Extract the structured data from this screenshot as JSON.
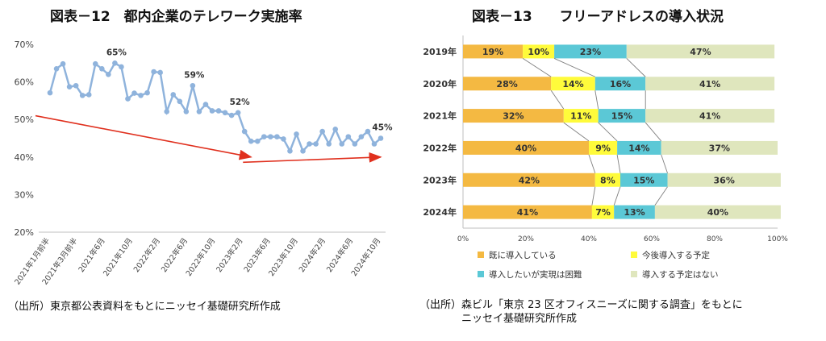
{
  "left": {
    "title": "図表－12　都内企業のテレワーク実施率",
    "source": "（出所）東京都公表資料をもとにニッセイ基礎研究所作成",
    "chart_data": {
      "type": "line",
      "title": "図表－12　都内企業のテレワーク実施率",
      "ylabel": "",
      "xlabel": "",
      "ylim": [
        20,
        70
      ],
      "yticks": [
        "20%",
        "30%",
        "40%",
        "50%",
        "60%",
        "70%"
      ],
      "xticks": [
        "2021年1月前半",
        "2021年3月前半",
        "2021年6月",
        "2021年10月",
        "2022年2月",
        "2022年6月",
        "2022年10月",
        "2023年2月",
        "2023年6月",
        "2023年10月",
        "2024年2月",
        "2024年6月",
        "2024年10月"
      ],
      "series": [
        {
          "values": [
            57.1,
            63.5,
            64.8,
            58.7,
            59.0,
            56.4,
            56.6,
            64.8,
            63.5,
            62.0,
            65.0,
            64.0,
            55.5,
            57.0,
            56.4,
            57.1,
            62.7,
            62.5,
            52.1,
            56.6,
            54.8,
            52.1,
            59.0,
            52.1,
            54.0,
            52.3,
            52.3,
            51.8,
            51.1,
            51.8,
            46.8,
            44.2,
            44.2,
            45.4,
            45.4,
            45.4,
            44.8,
            41.6,
            46.1,
            41.6,
            43.5,
            43.5,
            46.8,
            43.5,
            47.4,
            43.5,
            45.4,
            43.5,
            45.4,
            46.8,
            43.5,
            45.0
          ]
        }
      ],
      "annotations": [
        {
          "label": "65%",
          "index": 10
        },
        {
          "label": "59%",
          "index": 22
        },
        {
          "label": "52%",
          "index": 29
        },
        {
          "label": "45%",
          "index": 51
        }
      ],
      "trend_arrows": [
        {
          "from": [
            0,
            51.0
          ],
          "to": [
            31,
            40.0
          ]
        },
        {
          "from": [
            32,
            38.6
          ],
          "to": [
            51,
            40.0
          ]
        }
      ],
      "grid": false
    }
  },
  "right": {
    "title": "図表－13　　フリーアドレスの導入状況",
    "source": "（出所）森ビル「東京 23 区オフィスニーズに関する調査」をもとに\n　　　　ニッセイ基礎研究所作成",
    "chart_data": {
      "type": "bar",
      "orientation": "horizontal",
      "stacked": true,
      "title": "図表－13　　フリーアドレスの導入状況",
      "categories": [
        "2019年",
        "2020年",
        "2021年",
        "2022年",
        "2023年",
        "2024年"
      ],
      "xlim": [
        0,
        100
      ],
      "xticks": [
        "0%",
        "20%",
        "40%",
        "60%",
        "80%",
        "100%"
      ],
      "series": [
        {
          "name": "既に導入している",
          "color": "#f4b942",
          "values": [
            19,
            28,
            32,
            40,
            42,
            41
          ]
        },
        {
          "name": "今後導入する予定",
          "color": "#fffb3b",
          "values": [
            10,
            14,
            11,
            9,
            8,
            7
          ]
        },
        {
          "name": "導入したいが実現は困難",
          "color": "#5bc8d6",
          "values": [
            23,
            16,
            15,
            14,
            15,
            13
          ]
        },
        {
          "name": "導入する予定はない",
          "color": "#dfe6bd",
          "values": [
            47,
            41,
            41,
            37,
            36,
            40
          ]
        }
      ],
      "value_labels": [
        [
          "19%",
          "10%",
          "23%",
          "47%"
        ],
        [
          "28%",
          "14%",
          "16%",
          "41%"
        ],
        [
          "32%",
          "11%",
          "15%",
          "41%"
        ],
        [
          "40%",
          "9%",
          "14%",
          "37%"
        ],
        [
          "42%",
          "8%",
          "15%",
          "36%"
        ],
        [
          "41%",
          "7%",
          "13%",
          "40%"
        ]
      ],
      "legend_position": "bottom",
      "series_lines": true
    }
  },
  "colors": {
    "line": "#8fb3dc",
    "marker": "#8fb3dc",
    "arrow": "#e0301e",
    "axis": "#bfbfbf",
    "connector": "#808080"
  }
}
